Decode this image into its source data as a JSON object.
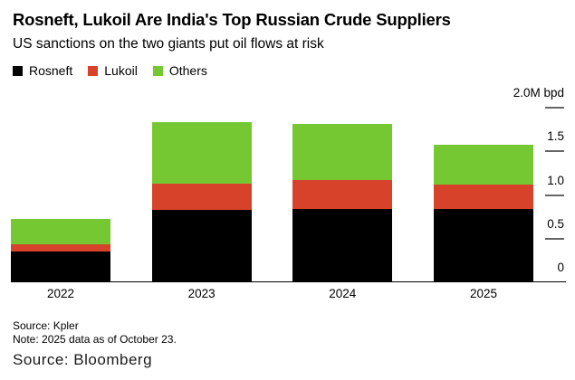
{
  "header": {
    "title": "Rosneft, Lukoil Are India's Top Russian Crude Suppliers",
    "subtitle": "US sanctions on the two giants put oil flows at risk"
  },
  "chart_data": {
    "type": "bar",
    "stacked": true,
    "unit": "M bpd",
    "categories": [
      "2022",
      "2023",
      "2024",
      "2025"
    ],
    "series": [
      {
        "name": "Rosneft",
        "color": "#000000",
        "values": [
          0.34,
          0.82,
          0.83,
          0.83
        ]
      },
      {
        "name": "Lukoil",
        "color": "#d6432a",
        "values": [
          0.08,
          0.3,
          0.33,
          0.28
        ]
      },
      {
        "name": "Others",
        "color": "#76c832",
        "values": [
          0.3,
          0.7,
          0.64,
          0.45
        ]
      }
    ],
    "totals": [
      0.72,
      1.82,
      1.8,
      1.56
    ],
    "ylim": [
      0,
      2.0
    ],
    "yticks": [
      {
        "value": 0,
        "label": "0",
        "mark": false
      },
      {
        "value": 0.5,
        "label": "0.5",
        "mark": true
      },
      {
        "value": 1.0,
        "label": "1.0",
        "mark": true
      },
      {
        "value": 1.5,
        "label": "1.5",
        "mark": true
      },
      {
        "value": 2.0,
        "label": "2.0M bpd",
        "mark": true
      }
    ],
    "legend_position": "top-left",
    "grid": false
  },
  "footnotes": {
    "source": "Source: Kpler",
    "note": "Note: 2025 data as of October 23.",
    "attribution": "Source: Bloomberg"
  },
  "colors": {
    "rosneft": "#000000",
    "lukoil": "#d6432a",
    "others": "#76c832",
    "axis_line": "#000000",
    "tick_mark": "#666666",
    "background": "#ffffff"
  }
}
